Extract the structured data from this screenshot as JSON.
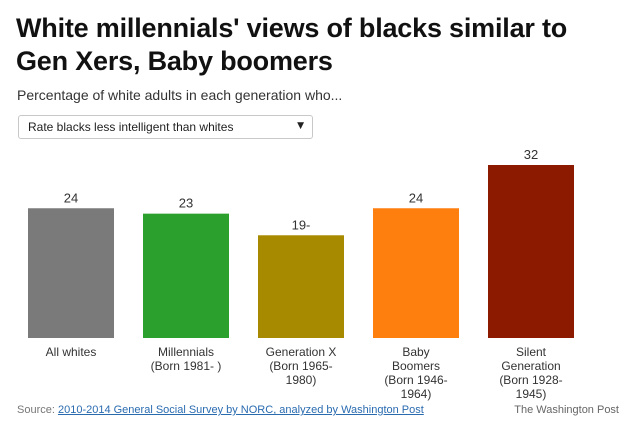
{
  "header": {
    "title": "White millennials' views of blacks similar to Gen Xers, Baby boomers",
    "subtitle": "Percentage of white adults in each generation who..."
  },
  "dropdown": {
    "selected": "Rate blacks less intelligent than whites",
    "arrow_icon": "triangle-down-icon"
  },
  "chart_data": {
    "type": "bar",
    "categories": [
      [
        "All whites"
      ],
      [
        "Millennials",
        "(Born 1981- )"
      ],
      [
        "Generation X",
        "(Born 1965-",
        "1980)"
      ],
      [
        "Baby",
        "Boomers",
        "(Born 1946-",
        "1964)"
      ],
      [
        "Silent",
        "Generation",
        "(Born 1928-",
        "1945)"
      ]
    ],
    "values": [
      24,
      23,
      19,
      24,
      32
    ],
    "value_labels": [
      "24",
      "23",
      "19-",
      "24",
      "32"
    ],
    "colors": [
      "#7a7a7a",
      "#2ca02c",
      "#a88a00",
      "#ff7f0e",
      "#8b1a00"
    ],
    "ylim": [
      0,
      32
    ],
    "grid": false,
    "legend": "none"
  },
  "footer": {
    "source_prefix": "Source: ",
    "source_link": "2010-2014 General Social Survey by NORC, analyzed by Washington Post",
    "credit": "The Washington Post"
  }
}
